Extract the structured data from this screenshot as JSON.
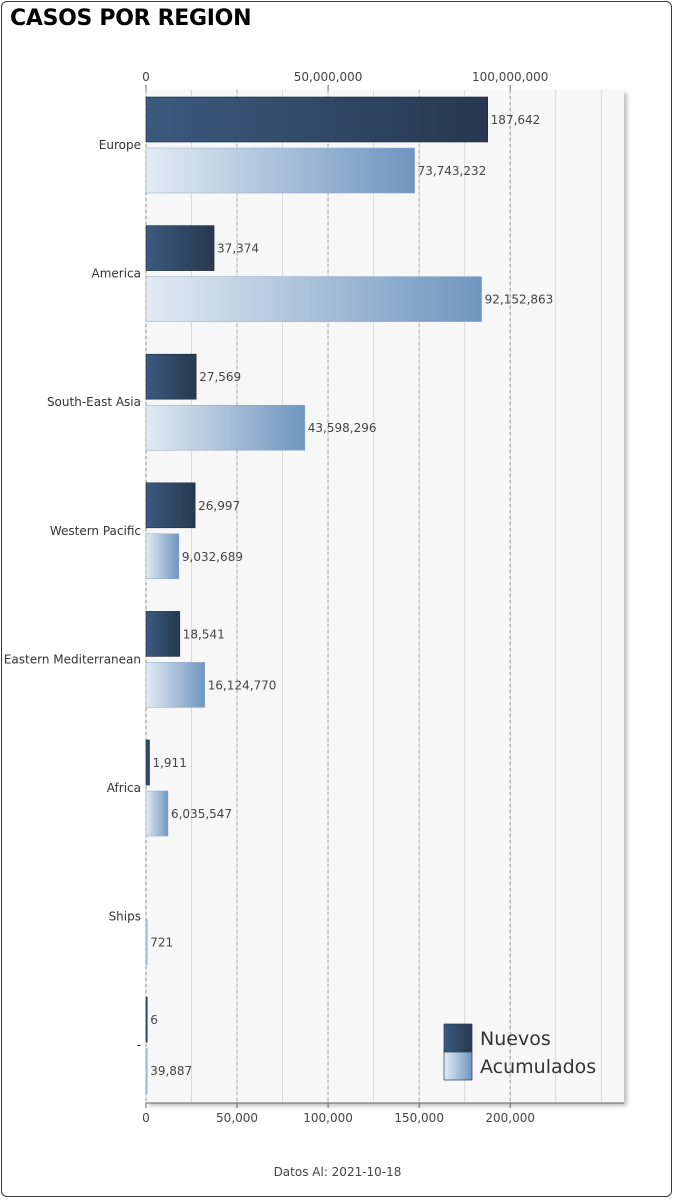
{
  "title": "CASOS POR REGION",
  "footer": "Datos Al: 2021-10-18",
  "colors": {
    "nuevos_dark": "#27384f",
    "nuevos_light": "#3b5a80",
    "acumulados_light": "#e3ebf3",
    "acumulados_dark": "#6f95bf",
    "plot_background": "#f7f7f7",
    "grid": "#bdbdbd"
  },
  "chart_data": {
    "type": "bar",
    "orientation": "horizontal",
    "title": "CASOS POR REGION",
    "categories": [
      "Europe",
      "America",
      "South-East Asia",
      "Western Pacific",
      "Eastern Mediterranean",
      "Africa",
      "Ships",
      "-"
    ],
    "series": [
      {
        "name": "Nuevos",
        "axis": "bottom",
        "values": [
          187642,
          37374,
          27569,
          26997,
          18541,
          1911,
          0,
          6
        ],
        "labels": [
          "187,642",
          "37,374",
          "27,569",
          "26,997",
          "18,541",
          "1,911",
          "",
          "6"
        ]
      },
      {
        "name": "Acumulados",
        "axis": "top",
        "values": [
          73743232,
          92152863,
          43598296,
          9032689,
          16124770,
          6035547,
          721,
          39887
        ],
        "labels": [
          "73,743,232",
          "92,152,863",
          "43,598,296",
          "9,032,689",
          "16,124,770",
          "6,035,547",
          "721",
          "39,887"
        ]
      }
    ],
    "x_axis_bottom": {
      "min": 0,
      "max": 262500,
      "ticks": [
        0,
        50000,
        100000,
        150000,
        200000
      ],
      "tick_labels": [
        "0",
        "50,000",
        "100,000",
        "150,000",
        "200,000"
      ]
    },
    "x_axis_top": {
      "min": 0,
      "max": 131250000,
      "ticks": [
        0,
        50000000,
        100000000
      ],
      "tick_labels": [
        "0",
        "50,000,000",
        "100,000,000"
      ]
    },
    "grid": true,
    "legend": {
      "position": "bottom-right",
      "entries": [
        "Nuevos",
        "Acumulados"
      ]
    }
  }
}
